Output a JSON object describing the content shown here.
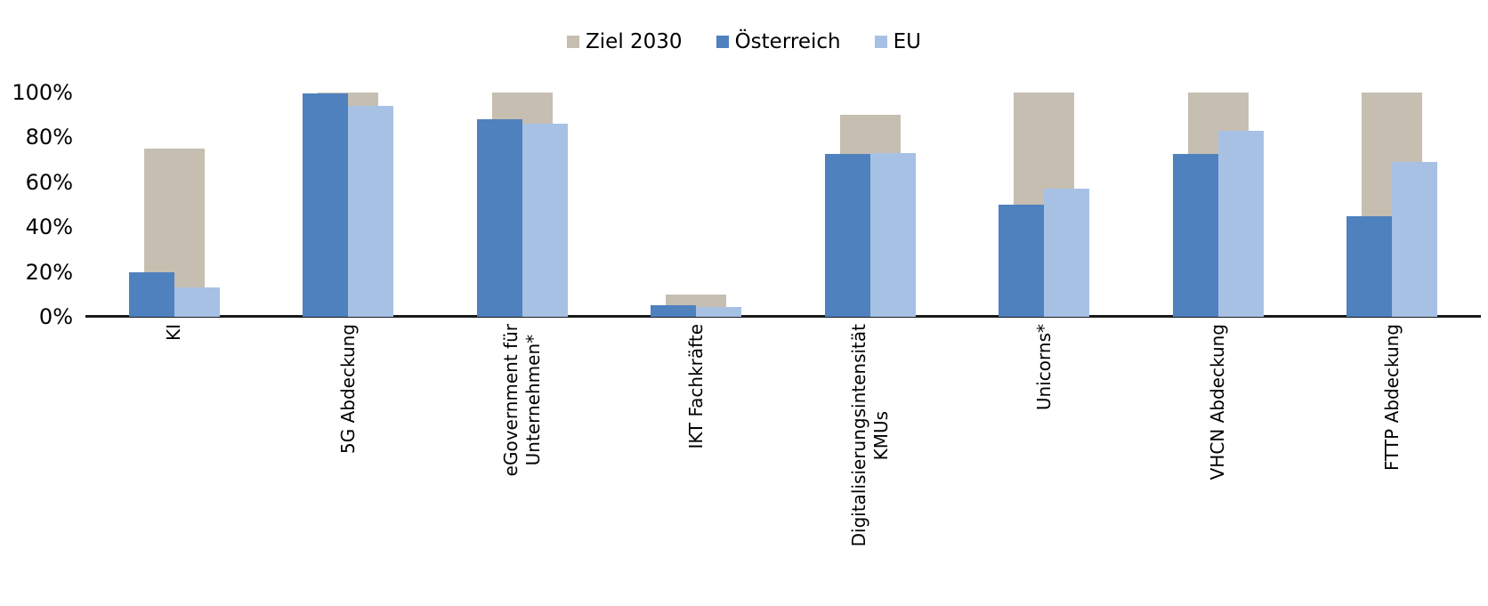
{
  "chart_data": {
    "type": "bar",
    "title": "",
    "xlabel": "",
    "ylabel": "",
    "categories": [
      "KI",
      "5G Abdeckung",
      "eGovernment für\nUnternehmen*",
      "IKT Fachkräfte",
      "Digitalisierungsintensität\nKMUs",
      "Unicorns*",
      "VHCN Abdeckung",
      "FTTP Abdeckung"
    ],
    "series": [
      {
        "name": "Ziel 2030",
        "color": "#c6beb1",
        "values": [
          75,
          100,
          100,
          10,
          90,
          100,
          100,
          100
        ]
      },
      {
        "name": "Österreich",
        "color": "#4e81be",
        "values": [
          20,
          99.5,
          88,
          5,
          72.5,
          50,
          72.5,
          45
        ]
      },
      {
        "name": "EU",
        "color": "#a7c1e5",
        "values": [
          13,
          94,
          86,
          4.5,
          73,
          57,
          83,
          69
        ]
      }
    ],
    "ylim": [
      0,
      100
    ],
    "ytick_values": [
      0,
      20,
      40,
      60,
      80,
      100
    ],
    "ytick_labels": [
      "0%",
      "20%",
      "40%",
      "60%",
      "80%",
      "100%"
    ],
    "grid": false,
    "legend_position": "top",
    "bar_layout": "overlapped: Ziel 2030 wide bar behind, Österreich (left) and EU (right) narrow bars in front"
  },
  "colors": {
    "background": "#ffffff",
    "axis_line": "#1a1a1a",
    "text": "#000000"
  }
}
